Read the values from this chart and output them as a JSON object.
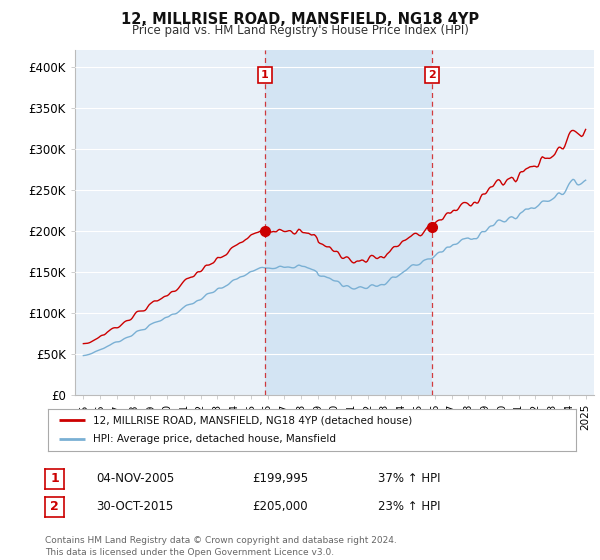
{
  "title": "12, MILLRISE ROAD, MANSFIELD, NG18 4YP",
  "subtitle": "Price paid vs. HM Land Registry's House Price Index (HPI)",
  "legend_line1": "12, MILLRISE ROAD, MANSFIELD, NG18 4YP (detached house)",
  "legend_line2": "HPI: Average price, detached house, Mansfield",
  "sale1_date": "04-NOV-2005",
  "sale1_price": "£199,995",
  "sale1_hpi": "37% ↑ HPI",
  "sale2_date": "30-OCT-2015",
  "sale2_price": "£205,000",
  "sale2_hpi": "23% ↑ HPI",
  "footer": "Contains HM Land Registry data © Crown copyright and database right 2024.\nThis data is licensed under the Open Government Licence v3.0.",
  "line_color_red": "#cc0000",
  "line_color_blue": "#7ab0d4",
  "shade_color": "#ddeeff",
  "background_color": "#ffffff",
  "plot_bg_color": "#e8f0f8",
  "grid_color": "#ffffff",
  "ylim": [
    0,
    420000
  ],
  "yticks": [
    0,
    50000,
    100000,
    150000,
    200000,
    250000,
    300000,
    350000,
    400000
  ],
  "ytick_labels": [
    "£0",
    "£50K",
    "£100K",
    "£150K",
    "£200K",
    "£250K",
    "£300K",
    "£350K",
    "£400K"
  ],
  "sale1_x": 2005.84,
  "sale1_y": 199995,
  "sale2_x": 2015.83,
  "sale2_y": 205000,
  "xlim_left": 1994.5,
  "xlim_right": 2025.5
}
